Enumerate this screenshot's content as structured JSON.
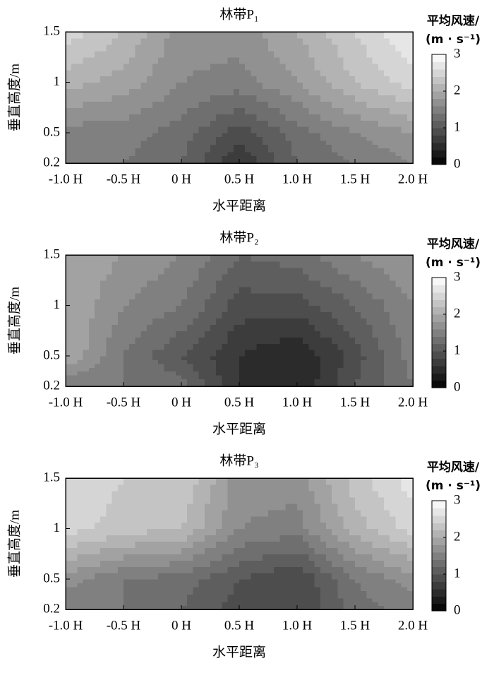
{
  "chart_data": [
    {
      "type": "contour",
      "title": "林带P₁",
      "xlabel": "水平距离",
      "ylabel": "垂直高度/m",
      "x": [
        -1,
        -0.5,
        0,
        0.5,
        1,
        1.5,
        2
      ],
      "y": [
        0.2,
        0.5,
        1,
        1.5
      ],
      "z": [
        [
          1.4,
          1.4,
          1.2,
          0.6,
          1.2,
          1.4,
          1.6
        ],
        [
          1.5,
          1.5,
          1.3,
          0.9,
          1.3,
          1.6,
          1.8
        ],
        [
          2.1,
          1.9,
          1.6,
          1.5,
          1.8,
          2.2,
          2.5
        ],
        [
          2.5,
          2.2,
          1.7,
          1.7,
          2.0,
          2.4,
          2.8
        ]
      ],
      "xlim": [
        -1,
        2
      ],
      "ylim": [
        0.2,
        1.5
      ],
      "xticks": [
        {
          "value": -1,
          "label": "-1.0 H"
        },
        {
          "value": -0.5,
          "label": "-0.5 H"
        },
        {
          "value": 0,
          "label": "0 H"
        },
        {
          "value": 0.5,
          "label": "0.5 H"
        },
        {
          "value": 1,
          "label": "1.0 H"
        },
        {
          "value": 1.5,
          "label": "1.5 H"
        },
        {
          "value": 2,
          "label": "2.0 H"
        }
      ],
      "yticks": [
        0.2,
        0.5,
        1,
        1.5
      ],
      "colorbar": {
        "label": [
          "平均风速/",
          "(m · s⁻¹)"
        ],
        "clim": [
          0,
          3
        ],
        "ticks": [
          0,
          1,
          2,
          3
        ]
      }
    },
    {
      "type": "contour",
      "title": "林带P₂",
      "xlabel": "水平距离",
      "ylabel": "垂直高度/m",
      "x": [
        -1,
        -0.5,
        0,
        0.5,
        1,
        1.5,
        2
      ],
      "y": [
        0.2,
        0.5,
        1,
        1.5
      ],
      "z": [
        [
          1.4,
          1.4,
          1.3,
          0.6,
          0.4,
          1.0,
          1.4
        ],
        [
          2.0,
          1.4,
          1.0,
          0.6,
          0.4,
          0.9,
          1.5
        ],
        [
          2.0,
          1.6,
          1.4,
          0.9,
          0.9,
          1.2,
          1.6
        ],
        [
          2.0,
          1.8,
          1.6,
          1.2,
          1.3,
          1.6,
          1.8
        ]
      ],
      "xlim": [
        -1,
        2
      ],
      "ylim": [
        0.2,
        1.5
      ],
      "xticks": [
        {
          "value": -1,
          "label": "-1.0 H"
        },
        {
          "value": -0.5,
          "label": "-0.5 H"
        },
        {
          "value": 0,
          "label": "0 H"
        },
        {
          "value": 0.5,
          "label": "0.5 H"
        },
        {
          "value": 1,
          "label": "1.0 H"
        },
        {
          "value": 1.5,
          "label": "1.5 H"
        },
        {
          "value": 2,
          "label": "2.0 H"
        }
      ],
      "yticks": [
        0.2,
        0.5,
        1,
        1.5
      ],
      "colorbar": {
        "label": [
          "平均风速/",
          "(m · s⁻¹)"
        ],
        "clim": [
          0,
          3
        ],
        "ticks": [
          0,
          1,
          2,
          3
        ]
      }
    },
    {
      "type": "contour",
      "title": "林带P₃",
      "xlabel": "水平距离",
      "ylabel": "垂直高度/m",
      "x": [
        -1,
        -0.5,
        0,
        0.5,
        1,
        1.5,
        2
      ],
      "y": [
        0.2,
        0.5,
        1,
        1.5
      ],
      "z": [
        [
          1.4,
          1.4,
          1.2,
          0.9,
          0.8,
          1.3,
          1.5
        ],
        [
          1.7,
          1.4,
          1.3,
          1.0,
          0.8,
          1.4,
          1.7
        ],
        [
          2.5,
          2.3,
          2.2,
          1.6,
          1.5,
          2.1,
          2.5
        ],
        [
          2.6,
          2.4,
          2.4,
          1.7,
          1.7,
          2.3,
          2.7
        ]
      ],
      "xlim": [
        -1,
        2
      ],
      "ylim": [
        0.2,
        1.5
      ],
      "xticks": [
        {
          "value": -1,
          "label": "-1.0 H"
        },
        {
          "value": -0.5,
          "label": "-0.5 H"
        },
        {
          "value": 0,
          "label": "0 H"
        },
        {
          "value": 0.5,
          "label": "0.5 H"
        },
        {
          "value": 1,
          "label": "1.0 H"
        },
        {
          "value": 1.5,
          "label": "1.5 H"
        },
        {
          "value": 2,
          "label": "2.0 H"
        }
      ],
      "yticks": [
        0.2,
        0.5,
        1,
        1.5
      ],
      "colorbar": {
        "label": [
          "平均风速/",
          "(m · s⁻¹)"
        ],
        "clim": [
          0,
          3
        ],
        "ticks": [
          0,
          1,
          2,
          3
        ]
      }
    }
  ]
}
